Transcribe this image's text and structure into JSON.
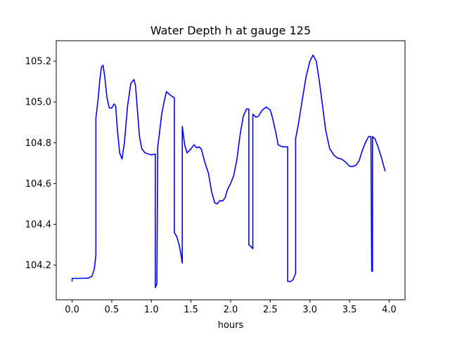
{
  "chart_data": {
    "type": "line",
    "title": "Water Depth h at gauge 125",
    "xlabel": "hours",
    "ylabel": "",
    "xlim": [
      -0.2,
      4.2
    ],
    "ylim": [
      104.03,
      105.3
    ],
    "xticks": [
      0.0,
      0.5,
      1.0,
      1.5,
      2.0,
      2.5,
      3.0,
      3.5,
      4.0
    ],
    "xtick_labels": [
      "0.0",
      "0.5",
      "1.0",
      "1.5",
      "2.0",
      "2.5",
      "3.0",
      "3.5",
      "4.0"
    ],
    "yticks": [
      104.2,
      104.4,
      104.6,
      104.8,
      105.0,
      105.2
    ],
    "ytick_labels": [
      "104.2",
      "104.4",
      "104.6",
      "104.8",
      "105.0",
      "105.2"
    ],
    "grid": false,
    "series": [
      {
        "color": "#0000ff",
        "points": [
          [
            0.0,
            104.12
          ],
          [
            0.0,
            104.135
          ],
          [
            0.1,
            104.135
          ],
          [
            0.2,
            104.136
          ],
          [
            0.25,
            104.145
          ],
          [
            0.28,
            104.18
          ],
          [
            0.3,
            104.25
          ],
          [
            0.3,
            104.92
          ],
          [
            0.33,
            105.02
          ],
          [
            0.35,
            105.11
          ],
          [
            0.37,
            105.17
          ],
          [
            0.39,
            105.18
          ],
          [
            0.41,
            105.13
          ],
          [
            0.44,
            105.02
          ],
          [
            0.47,
            104.97
          ],
          [
            0.5,
            104.97
          ],
          [
            0.53,
            104.99
          ],
          [
            0.55,
            104.98
          ],
          [
            0.57,
            104.87
          ],
          [
            0.6,
            104.75
          ],
          [
            0.63,
            104.72
          ],
          [
            0.66,
            104.8
          ],
          [
            0.7,
            104.98
          ],
          [
            0.74,
            105.09
          ],
          [
            0.78,
            105.11
          ],
          [
            0.8,
            105.08
          ],
          [
            0.82,
            104.98
          ],
          [
            0.85,
            104.83
          ],
          [
            0.88,
            104.77
          ],
          [
            0.92,
            104.75
          ],
          [
            0.96,
            104.745
          ],
          [
            1.0,
            104.74
          ],
          [
            1.05,
            104.745
          ],
          [
            1.05,
            104.09
          ],
          [
            1.07,
            104.11
          ],
          [
            1.08,
            104.78
          ],
          [
            1.1,
            104.84
          ],
          [
            1.13,
            104.94
          ],
          [
            1.16,
            105.0
          ],
          [
            1.19,
            105.05
          ],
          [
            1.22,
            105.04
          ],
          [
            1.25,
            105.03
          ],
          [
            1.29,
            105.02
          ],
          [
            1.29,
            104.36
          ],
          [
            1.32,
            104.34
          ],
          [
            1.35,
            104.3
          ],
          [
            1.37,
            104.26
          ],
          [
            1.39,
            104.21
          ],
          [
            1.39,
            104.88
          ],
          [
            1.42,
            104.79
          ],
          [
            1.45,
            104.75
          ],
          [
            1.5,
            104.77
          ],
          [
            1.54,
            104.79
          ],
          [
            1.57,
            104.775
          ],
          [
            1.6,
            104.78
          ],
          [
            1.63,
            104.77
          ],
          [
            1.67,
            104.71
          ],
          [
            1.72,
            104.65
          ],
          [
            1.76,
            104.56
          ],
          [
            1.8,
            104.505
          ],
          [
            1.83,
            104.5
          ],
          [
            1.86,
            104.515
          ],
          [
            1.9,
            104.515
          ],
          [
            1.93,
            104.53
          ],
          [
            1.96,
            104.57
          ],
          [
            2.0,
            104.6
          ],
          [
            2.04,
            104.64
          ],
          [
            2.08,
            104.72
          ],
          [
            2.12,
            104.84
          ],
          [
            2.16,
            104.93
          ],
          [
            2.2,
            104.965
          ],
          [
            2.23,
            104.965
          ],
          [
            2.23,
            104.3
          ],
          [
            2.26,
            104.29
          ],
          [
            2.28,
            104.28
          ],
          [
            2.28,
            104.94
          ],
          [
            2.32,
            104.925
          ],
          [
            2.35,
            104.93
          ],
          [
            2.4,
            104.96
          ],
          [
            2.45,
            104.975
          ],
          [
            2.5,
            104.96
          ],
          [
            2.53,
            104.92
          ],
          [
            2.57,
            104.85
          ],
          [
            2.6,
            104.79
          ],
          [
            2.65,
            104.78
          ],
          [
            2.72,
            104.78
          ],
          [
            2.72,
            104.12
          ],
          [
            2.76,
            104.12
          ],
          [
            2.79,
            104.13
          ],
          [
            2.82,
            104.16
          ],
          [
            2.82,
            104.82
          ],
          [
            2.85,
            104.88
          ],
          [
            2.9,
            105.0
          ],
          [
            2.95,
            105.12
          ],
          [
            3.0,
            105.2
          ],
          [
            3.04,
            105.23
          ],
          [
            3.08,
            105.2
          ],
          [
            3.12,
            105.1
          ],
          [
            3.16,
            104.98
          ],
          [
            3.2,
            104.86
          ],
          [
            3.25,
            104.77
          ],
          [
            3.27,
            104.76
          ],
          [
            3.3,
            104.74
          ],
          [
            3.35,
            104.725
          ],
          [
            3.4,
            104.72
          ],
          [
            3.45,
            104.705
          ],
          [
            3.5,
            104.685
          ],
          [
            3.54,
            104.683
          ],
          [
            3.58,
            104.69
          ],
          [
            3.62,
            104.71
          ],
          [
            3.66,
            104.76
          ],
          [
            3.7,
            104.8
          ],
          [
            3.74,
            104.83
          ],
          [
            3.77,
            104.83
          ],
          [
            3.78,
            104.17
          ],
          [
            3.79,
            104.17
          ],
          [
            3.79,
            104.83
          ],
          [
            3.82,
            104.82
          ],
          [
            3.86,
            104.78
          ],
          [
            3.9,
            104.73
          ],
          [
            3.95,
            104.66
          ]
        ]
      }
    ]
  }
}
